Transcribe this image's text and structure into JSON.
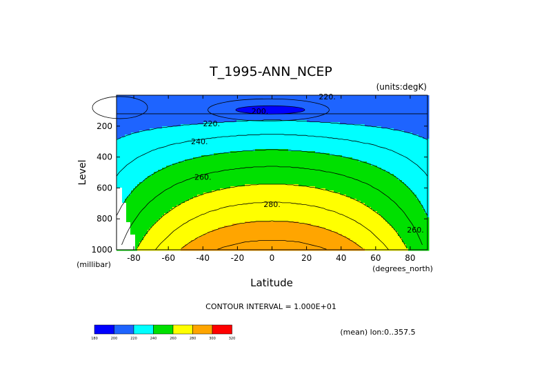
{
  "chart_data": {
    "type": "heatmap",
    "title": "T_1995-ANN_NCEP",
    "units_label": "(units:degK)",
    "xlabel": "Latitude",
    "ylabel": "Level",
    "x_unit_label": "(degrees_north)",
    "y_unit_label": "(millibar)",
    "xlim": [
      -90,
      90
    ],
    "ylim": [
      1000,
      0
    ],
    "x_ticks": [
      -80,
      -60,
      -40,
      -20,
      0,
      20,
      40,
      60,
      80
    ],
    "y_ticks": [
      200,
      400,
      600,
      800,
      1000
    ],
    "contour_interval_text": "CONTOUR INTERVAL = 1.000E+01",
    "mean_text": "(mean) lon:0..357.5",
    "colorbar": {
      "levels": [
        "180",
        "200",
        "220",
        "240",
        "260",
        "280",
        "300",
        "320"
      ],
      "colors": [
        "#0000ff",
        "#1e64ff",
        "#00ffff",
        "#00e000",
        "#ffff00",
        "#ffa500",
        "#ff0000"
      ]
    },
    "contour_labels": [
      {
        "text": "200.",
        "lat": -7,
        "level": 103
      },
      {
        "text": "220.",
        "lat": 32,
        "level": 10
      },
      {
        "text": "220.",
        "lat": -35,
        "level": 183
      },
      {
        "text": "240.",
        "lat": -42,
        "level": 300
      },
      {
        "text": "260.",
        "lat": -40,
        "level": 530
      },
      {
        "text": "280.",
        "lat": 0,
        "level": 705
      },
      {
        "text": "260.",
        "lat": 83,
        "level": 870
      }
    ]
  }
}
